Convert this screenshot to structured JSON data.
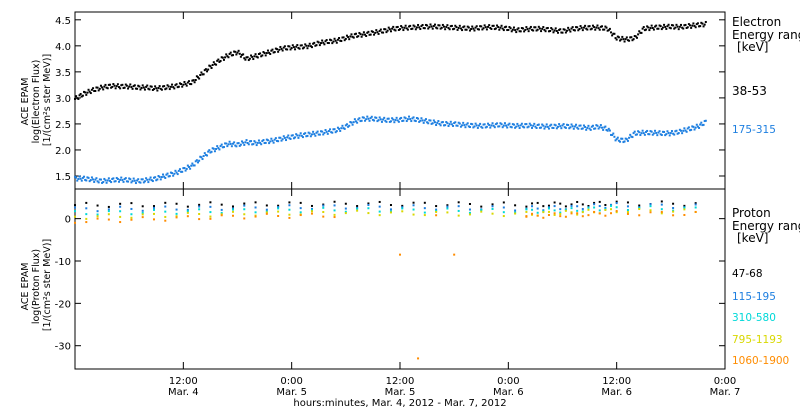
{
  "chart_data": [
    {
      "type": "scatter",
      "panel": "top",
      "ylabel_lines": [
        "ACE EPAM",
        "log(Electron Flux)",
        "[1/(cm²s ster MeV)]"
      ],
      "ylim": [
        1.25,
        4.65
      ],
      "yticks": [
        1.5,
        2.0,
        2.5,
        3.0,
        3.5,
        4.0,
        4.5
      ],
      "ytick_labels": [
        "1.5",
        "2.0",
        "2.5",
        "3.0",
        "3.5",
        "4.0",
        "4.5"
      ],
      "xlim": [
        0,
        72
      ],
      "legend_title": [
        "Electron",
        "Energy range",
        "[keV]"
      ],
      "series": [
        {
          "name": "38-53",
          "color": "#000000",
          "x": [
            0,
            1,
            2,
            3,
            4,
            5,
            6,
            7,
            8,
            9,
            10,
            11,
            12,
            13,
            14,
            15,
            16,
            17,
            18,
            19,
            20,
            21,
            22,
            23,
            24,
            25,
            26,
            27,
            28,
            29,
            30,
            31,
            32,
            33,
            34,
            35,
            36,
            37,
            38,
            39,
            40,
            41,
            42,
            43,
            44,
            45,
            46,
            47,
            48,
            49,
            50,
            51,
            52,
            53,
            54,
            55,
            56,
            57,
            58,
            59,
            60,
            61,
            62,
            63,
            64,
            65,
            66,
            67,
            68,
            69,
            70
          ],
          "y": [
            2.98,
            3.08,
            3.15,
            3.2,
            3.23,
            3.22,
            3.22,
            3.2,
            3.2,
            3.18,
            3.2,
            3.22,
            3.26,
            3.3,
            3.45,
            3.6,
            3.72,
            3.82,
            3.88,
            3.75,
            3.8,
            3.85,
            3.9,
            3.95,
            3.97,
            3.98,
            4.0,
            4.05,
            4.08,
            4.1,
            4.15,
            4.2,
            4.22,
            4.25,
            4.28,
            4.32,
            4.34,
            4.35,
            4.36,
            4.37,
            4.37,
            4.36,
            4.35,
            4.34,
            4.33,
            4.35,
            4.36,
            4.35,
            4.33,
            4.3,
            4.32,
            4.33,
            4.32,
            4.3,
            4.28,
            4.32,
            4.34,
            4.35,
            4.35,
            4.33,
            4.15,
            4.12,
            4.15,
            4.33,
            4.35,
            4.36,
            4.37,
            4.36,
            4.38,
            4.4,
            4.42
          ]
        },
        {
          "name": "175-315",
          "color": "#1e7fe0",
          "x": [
            0,
            1,
            2,
            3,
            4,
            5,
            6,
            7,
            8,
            9,
            10,
            11,
            12,
            13,
            14,
            15,
            16,
            17,
            18,
            19,
            20,
            21,
            22,
            23,
            24,
            25,
            26,
            27,
            28,
            29,
            30,
            31,
            32,
            33,
            34,
            35,
            36,
            37,
            38,
            39,
            40,
            41,
            42,
            43,
            44,
            45,
            46,
            47,
            48,
            49,
            50,
            51,
            52,
            53,
            54,
            55,
            56,
            57,
            58,
            59,
            60,
            61,
            62,
            63,
            64,
            65,
            66,
            67,
            68,
            69,
            70
          ],
          "y": [
            1.45,
            1.45,
            1.43,
            1.4,
            1.42,
            1.43,
            1.42,
            1.4,
            1.42,
            1.45,
            1.5,
            1.55,
            1.62,
            1.7,
            1.85,
            1.98,
            2.05,
            2.12,
            2.1,
            2.15,
            2.13,
            2.16,
            2.18,
            2.22,
            2.25,
            2.28,
            2.3,
            2.32,
            2.35,
            2.38,
            2.45,
            2.55,
            2.6,
            2.6,
            2.58,
            2.57,
            2.58,
            2.6,
            2.58,
            2.55,
            2.52,
            2.5,
            2.5,
            2.48,
            2.47,
            2.46,
            2.47,
            2.48,
            2.47,
            2.46,
            2.47,
            2.46,
            2.45,
            2.45,
            2.46,
            2.45,
            2.44,
            2.42,
            2.45,
            2.4,
            2.2,
            2.18,
            2.32,
            2.33,
            2.33,
            2.32,
            2.32,
            2.35,
            2.4,
            2.45,
            2.55
          ]
        }
      ]
    },
    {
      "type": "scatter",
      "panel": "bottom",
      "ylabel_lines": [
        "ACE EPAM",
        "log(Proton Flux)",
        "[1/(cm²s ster MeV)]"
      ],
      "ylim": [
        -35.5,
        7
      ],
      "yticks": [
        -30,
        -20,
        -10,
        0
      ],
      "ytick_labels": [
        "-30",
        "-20",
        "-10",
        "0"
      ],
      "xlim": [
        0,
        72
      ],
      "legend_title": [
        "Proton",
        "Energy range",
        "[keV]"
      ],
      "series": [
        {
          "name": "47-68",
          "color": "#000000",
          "x": [
            0,
            10,
            20,
            30,
            40,
            50,
            55,
            60,
            70
          ],
          "y": [
            3.2,
            3.3,
            3.4,
            3.5,
            3.4,
            3.3,
            3.4,
            3.6,
            3.5
          ]
        },
        {
          "name": "115-195",
          "color": "#1e7fe0",
          "x": [
            0,
            10,
            20,
            30,
            40,
            50,
            55,
            60,
            70
          ],
          "y": [
            2.2,
            2.4,
            2.6,
            2.8,
            2.6,
            2.4,
            2.6,
            3.2,
            2.8
          ]
        },
        {
          "name": "310-580",
          "color": "#00d8d8",
          "x": [
            0,
            10,
            20,
            30,
            40,
            50,
            55,
            60,
            70
          ],
          "y": [
            1.3,
            1.6,
            1.9,
            2.1,
            1.9,
            1.8,
            2.0,
            2.6,
            2.2
          ]
        },
        {
          "name": "795-1193",
          "color": "#d8d800",
          "x": [
            0,
            10,
            20,
            30,
            40,
            50,
            55,
            60,
            70
          ],
          "y": [
            0.4,
            0.8,
            1.2,
            1.4,
            1.2,
            1.1,
            1.4,
            1.9,
            1.6
          ]
        },
        {
          "name": "1060-1900",
          "color": "#ff8c00",
          "x": [
            0,
            10,
            20,
            30,
            36,
            38,
            40,
            42,
            50,
            55,
            60,
            70
          ],
          "y": [
            -0.6,
            0.0,
            0.6,
            0.8,
            -8.5,
            -33,
            0.8,
            -8.5,
            0.6,
            0.9,
            1.3,
            1.1
          ]
        }
      ]
    }
  ],
  "x_axis": {
    "ticks_hours": [
      12,
      24,
      36,
      48,
      60,
      72
    ],
    "tick_labels_time": [
      "12:00",
      "0:00",
      "12:00",
      "0:00",
      "12:00",
      "0:00"
    ],
    "tick_labels_date": [
      "Mar. 4",
      "Mar. 5",
      "Mar. 5",
      "Mar. 6",
      "Mar. 6",
      "Mar. 7"
    ],
    "xlabel": "hours:minutes, Mar.  4, 2012 - Mar.  7, 2012"
  }
}
